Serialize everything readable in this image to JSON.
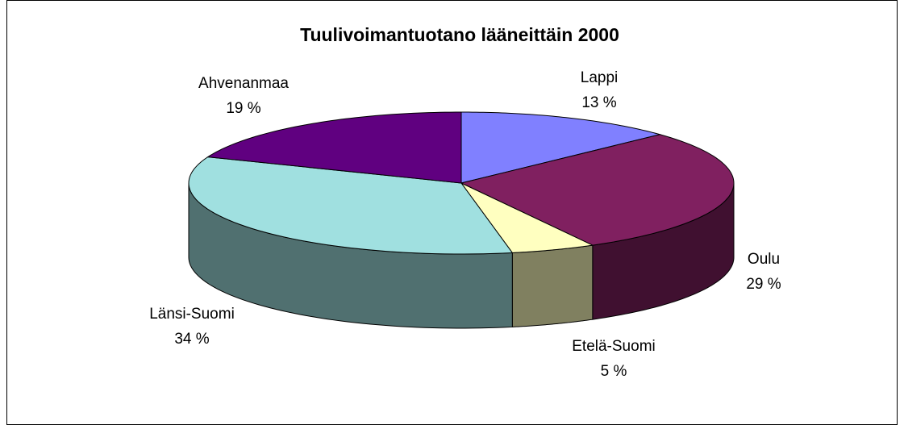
{
  "chart_data": {
    "type": "pie",
    "title": "Tuulivoimantuotano lääneittäin 2000",
    "categories": [
      "Lappi",
      "Oulu",
      "Etelä-Suomi",
      "Länsi-Suomi",
      "Ahvenanmaa"
    ],
    "values": [
      13,
      29,
      5,
      34,
      19
    ],
    "value_labels": [
      "13 %",
      "29 %",
      "5 %",
      "34 %",
      "19 %"
    ],
    "colors": [
      "#8080ff",
      "#802060",
      "#ffffc0",
      "#a0e0e0",
      "#600080"
    ]
  }
}
